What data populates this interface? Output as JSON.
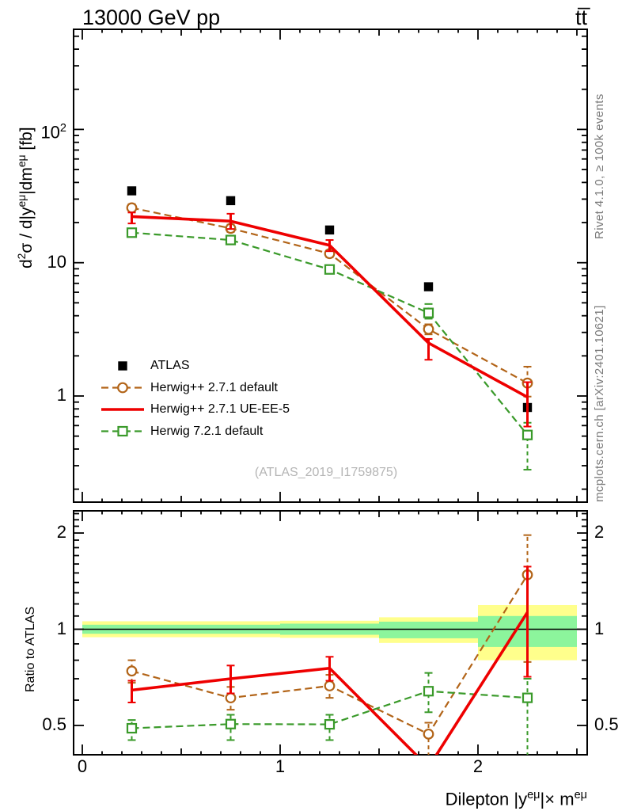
{
  "header": {
    "title_left": "13000 GeV pp",
    "title_right": "tt̅"
  },
  "side_notes": {
    "top_right": "Rivet 4.1.0, ≥ 100k events",
    "bottom_right": "mcplots.cern.ch [arXiv:2401.10621]"
  },
  "watermark": "(ATLAS_2019_I1759875)",
  "colors": {
    "atlas": "#000000",
    "herwig_default": "#b26418",
    "herwig_ueee5": "#ee0000",
    "herwig7": "#3a9a2a",
    "band_yellow": "#ffff8c",
    "band_green": "#8cf59c",
    "frame": "#000000",
    "note_gray": "#7a7a7a",
    "watermark_gray": "#b5b5b5"
  },
  "legend": [
    {
      "label": "ATLAS",
      "marker": "filled-square",
      "line": "none",
      "color": "#000000"
    },
    {
      "label": "Herwig++ 2.7.1 default",
      "marker": "open-circle",
      "line": "dashed",
      "color": "#b26418"
    },
    {
      "label": "Herwig++ 2.7.1 UE-EE-5",
      "marker": "none",
      "line": "solid",
      "color": "#ee0000"
    },
    {
      "label": "Herwig 7.2.1 default",
      "marker": "open-square",
      "line": "dashed",
      "color": "#3a9a2a"
    }
  ],
  "axes": {
    "x": {
      "title_parts": {
        "pre": "Dilepton |y",
        "sup1": "eμ",
        "mid": "|× m",
        "sup2": "eμ"
      },
      "ticks": [
        {
          "v": 0,
          "label": "0"
        },
        {
          "v": 1,
          "label": "1"
        },
        {
          "v": 2,
          "label": "2"
        }
      ],
      "min": -0.044,
      "max": 2.552
    },
    "y_main": {
      "title_parts": {
        "p1": "d",
        "s1": "2",
        "p2": "σ / d|y",
        "s2": "eμ",
        "p3": "|dm",
        "s3": "eμ",
        "p4": " [fb]"
      },
      "scale": "log",
      "min": 0.16,
      "max": 560,
      "ticks": [
        {
          "v": 100,
          "base": "10",
          "exp": "2"
        },
        {
          "v": 10,
          "base": "10",
          "exp": ""
        },
        {
          "v": 1,
          "base": "1",
          "exp": ""
        }
      ]
    },
    "y_ratio": {
      "title": "Ratio to ATLAS",
      "scale": "log",
      "min": 0.405,
      "max": 2.35,
      "ticks": [
        {
          "v": 2,
          "label": "2"
        },
        {
          "v": 1,
          "label": "1"
        },
        {
          "v": 0.5,
          "label": "0.5"
        }
      ]
    }
  },
  "chart_data": [
    {
      "type": "line",
      "panel": "main",
      "title": "13000 GeV pp",
      "ylabel": "d2σ / d|yeμ|dmeμ [fb]",
      "yscale": "log",
      "xlim": [
        -0.044,
        2.552
      ],
      "ylim": [
        0.16,
        560
      ],
      "grid": false,
      "legend_position": "left-middle",
      "x": [
        0.25,
        0.75,
        1.25,
        1.75,
        2.25
      ],
      "series": [
        {
          "name": "ATLAS",
          "color": "#000000",
          "marker": "filled-square",
          "line": "none",
          "values": [
            34.6,
            29.2,
            17.6,
            6.6,
            0.82
          ]
        },
        {
          "name": "Herwig++ 2.7.1 default",
          "color": "#b26418",
          "marker": "open-circle",
          "line": "dashed",
          "values": [
            25.8,
            18.1,
            11.7,
            3.17,
            1.25
          ],
          "err_lo": [
            24.0,
            17.0,
            11.0,
            2.9,
            0.99
          ],
          "err_hi": [
            27.5,
            19.3,
            12.4,
            3.45,
            1.66
          ]
        },
        {
          "name": "Herwig++ 2.7.1 UE-EE-5",
          "color": "#ee0000",
          "marker": "none",
          "line": "solid",
          "values": [
            22.2,
            20.5,
            13.5,
            2.5,
            0.98
          ],
          "err_lo": [
            19.7,
            17.9,
            12.2,
            1.87,
            0.59
          ],
          "err_hi": [
            23.8,
            23.3,
            14.8,
            2.68,
            1.27
          ]
        },
        {
          "name": "Herwig 7.2.1 default",
          "color": "#3a9a2a",
          "marker": "open-square",
          "line": "dashed",
          "values": [
            16.8,
            14.8,
            8.9,
            4.2,
            0.51
          ],
          "err_lo": [
            15.8,
            14.0,
            8.4,
            3.8,
            0.28
          ],
          "err_hi": [
            17.8,
            15.6,
            9.4,
            4.9,
            0.63
          ]
        }
      ]
    },
    {
      "type": "line",
      "panel": "ratio",
      "ylabel": "Ratio to ATLAS",
      "xlabel": "Dilepton |yeμ|× meμ",
      "yscale": "log",
      "xlim": [
        -0.044,
        2.552
      ],
      "ylim": [
        0.405,
        2.35
      ],
      "reference_line": 1,
      "bands": [
        {
          "x0": 0.0,
          "x1": 1.0,
          "outer": [
            0.944,
            1.059
          ],
          "inner": [
            0.968,
            1.033
          ]
        },
        {
          "x0": 1.0,
          "x1": 1.5,
          "outer": [
            0.94,
            1.063
          ],
          "inner": [
            0.961,
            1.041
          ]
        },
        {
          "x0": 1.5,
          "x1": 2.0,
          "outer": [
            0.906,
            1.09
          ],
          "inner": [
            0.937,
            1.056
          ]
        },
        {
          "x0": 2.0,
          "x1": 2.5,
          "outer": [
            0.8,
            1.19
          ],
          "inner": [
            0.88,
            1.1
          ]
        }
      ],
      "x": [
        0.25,
        0.75,
        1.25,
        1.75,
        2.25
      ],
      "series": [
        {
          "name": "Herwig++ 2.7.1 default",
          "color": "#b26418",
          "marker": "open-circle",
          "line": "dashed",
          "values": [
            0.74,
            0.61,
            0.665,
            0.47,
            1.48
          ],
          "err_lo": [
            0.68,
            0.56,
            0.61,
            0.4,
            0.79
          ],
          "err_hi": [
            0.8,
            0.66,
            0.72,
            0.51,
            1.97
          ]
        },
        {
          "name": "Herwig++ 2.7.1 UE-EE-5",
          "color": "#ee0000",
          "marker": "none",
          "line": "solid",
          "values": [
            0.645,
            0.7,
            0.755,
            0.37,
            1.13
          ],
          "err_lo": [
            0.59,
            0.63,
            0.69,
            null,
            0.71
          ],
          "err_hi": [
            0.69,
            0.77,
            0.82,
            null,
            1.57
          ]
        },
        {
          "name": "Herwig 7.2.1 default",
          "color": "#3a9a2a",
          "marker": "open-square",
          "line": "dashed",
          "values": [
            0.49,
            0.505,
            0.504,
            0.64,
            0.61
          ],
          "err_lo": [
            0.45,
            0.45,
            0.45,
            0.55,
            0.4
          ],
          "err_hi": [
            0.52,
            0.54,
            0.54,
            0.73,
            0.7
          ]
        }
      ]
    }
  ]
}
